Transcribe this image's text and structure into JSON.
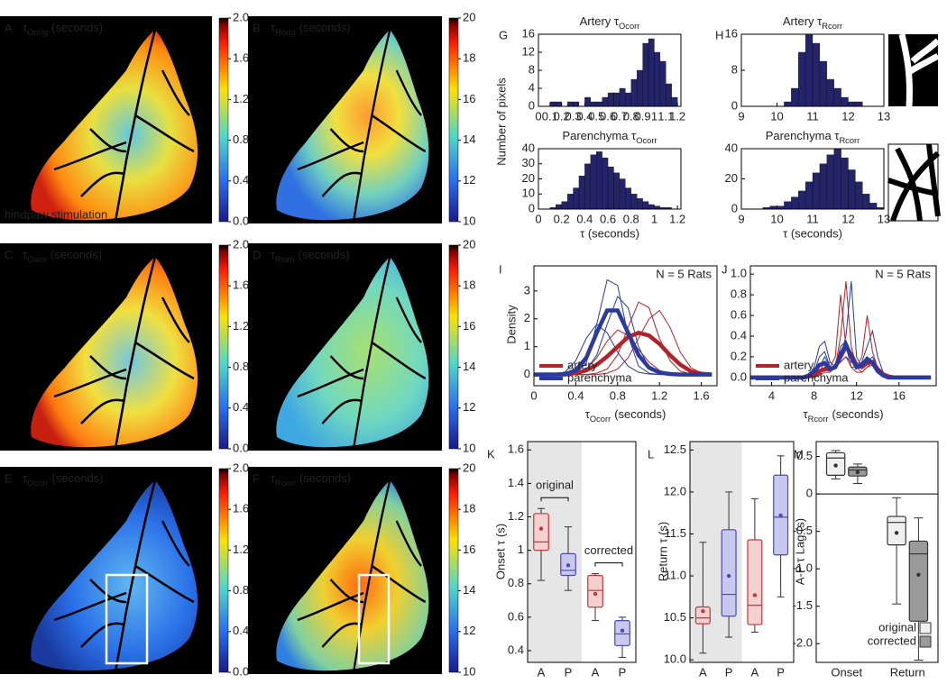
{
  "images": [
    {
      "letter": "A",
      "symbol": "τ",
      "subscript": "Oorig",
      "unit": "(seconds)",
      "note": "hindpaw stimulation",
      "colorbar": {
        "lim": [
          0,
          2
        ],
        "ticks": [
          {
            "value": 0,
            "label": "0.0"
          },
          0.4,
          0.8,
          1.2,
          1.6,
          {
            "value": 2,
            "label": "2.0"
          }
        ]
      }
    },
    {
      "letter": "B",
      "symbol": "τ",
      "subscript": "Rorig",
      "unit": "(seconds)",
      "colorbar": {
        "lim": [
          10,
          20
        ],
        "ticks": [
          10,
          12,
          14,
          16,
          18,
          20
        ]
      }
    },
    {
      "letter": "C",
      "symbol": "τ",
      "subscript": "Osim",
      "unit": "(seconds)",
      "colorbar": {
        "lim": [
          0,
          2
        ],
        "ticks": [
          {
            "value": 0,
            "label": "0.0"
          },
          0.4,
          0.8,
          1.2,
          1.6,
          {
            "value": 2,
            "label": "2.0"
          }
        ]
      }
    },
    {
      "letter": "D",
      "symbol": "τ",
      "subscript": "Rsim",
      "unit": "(seconds)",
      "colorbar": {
        "lim": [
          10,
          20
        ],
        "ticks": [
          10,
          12,
          14,
          16,
          18,
          20
        ]
      }
    },
    {
      "letter": "E",
      "symbol": "τ",
      "subscript": "Ocorr",
      "unit": "(seconds)",
      "colorbar": {
        "lim": [
          0,
          2
        ],
        "ticks": [
          {
            "value": 0,
            "label": "0.0"
          },
          0.4,
          0.8,
          1.2,
          1.6,
          {
            "value": 2,
            "label": "2.0"
          }
        ]
      }
    },
    {
      "letter": "F",
      "symbol": "τ",
      "subscript": "Rcorr",
      "unit": "(seconds)",
      "colorbar": {
        "lim": [
          10,
          20
        ],
        "ticks": [
          10,
          12,
          14,
          16,
          18,
          20
        ]
      }
    }
  ],
  "chart_data": [
    {
      "type": "histogram",
      "panel": "G",
      "title": "Artery τ",
      "title_subscript": "Ocorr",
      "ylabel": "Number of pixels",
      "color": "#24246a",
      "bins": [
        0,
        0.05,
        0.1,
        0.15,
        0.2,
        0.25,
        0.3,
        0.35,
        0.4,
        0.45,
        0.5,
        0.55,
        0.6,
        0.65,
        0.7,
        0.75,
        0.8,
        0.85,
        0.9,
        0.95,
        1,
        1.05,
        1.1,
        1.15,
        1.2
      ],
      "values": [
        0,
        0,
        1,
        1,
        0,
        1,
        1,
        0,
        2,
        1,
        1,
        2,
        3,
        3,
        4,
        3,
        6,
        8,
        14,
        15,
        12,
        10,
        5,
        2
      ],
      "xlim": [
        0,
        1.23
      ],
      "xticks": [
        0,
        0.1,
        0.2,
        0.3,
        0.4,
        0.5,
        0.6,
        0.7,
        0.8,
        0.9,
        1,
        1.1,
        1.2
      ],
      "ylim": [
        0,
        16
      ],
      "yticks": [
        0,
        4,
        8,
        12,
        16
      ]
    },
    {
      "type": "histogram",
      "title": "Parenchyma τ",
      "title_subscript": "Ocorr",
      "xlabel": "τ (seconds)",
      "color": "#24246a",
      "bins": [
        0,
        0.05,
        0.1,
        0.15,
        0.2,
        0.25,
        0.3,
        0.35,
        0.4,
        0.45,
        0.5,
        0.55,
        0.6,
        0.65,
        0.7,
        0.75,
        0.8,
        0.85,
        0.9,
        0.95,
        1,
        1.05,
        1.1,
        1.15,
        1.2
      ],
      "values": [
        0,
        0,
        1,
        3,
        5,
        10,
        14,
        22,
        30,
        36,
        38,
        34,
        28,
        24,
        20,
        14,
        10,
        7,
        5,
        3,
        2,
        1,
        1,
        0
      ],
      "xlim": [
        0,
        1.23
      ],
      "xticks": [
        0,
        0.2,
        0.4,
        0.6,
        0.8,
        1,
        1.2
      ],
      "ylim": [
        0,
        40
      ],
      "yticks": [
        0,
        10,
        20,
        30,
        40
      ]
    },
    {
      "type": "histogram",
      "panel": "H",
      "title": "Artery τ",
      "title_subscript": "Rcorr",
      "color": "#24246a",
      "bins": [
        9,
        9.2,
        9.4,
        9.6,
        9.8,
        10,
        10.2,
        10.4,
        10.6,
        10.8,
        11,
        11.2,
        11.4,
        11.6,
        11.8,
        12,
        12.2,
        12.4,
        12.6,
        12.8,
        13
      ],
      "values": [
        0,
        0,
        0,
        0,
        0,
        0,
        1,
        4,
        12,
        16,
        14,
        10,
        6,
        4,
        2,
        1,
        1,
        0,
        0,
        0
      ],
      "xlim": [
        9,
        13
      ],
      "xticks": [
        9,
        10,
        11,
        12,
        13
      ],
      "ylim": [
        0,
        16
      ],
      "yticks": [
        0,
        8,
        16
      ]
    },
    {
      "type": "histogram",
      "title": "Parenchyma τ",
      "title_subscript": "Rcorr",
      "xlabel": "τ (seconds)",
      "color": "#24246a",
      "bins": [
        9,
        9.2,
        9.4,
        9.6,
        9.8,
        10,
        10.2,
        10.4,
        10.6,
        10.8,
        11,
        11.2,
        11.4,
        11.6,
        11.8,
        12,
        12.2,
        12.4,
        12.6,
        12.8,
        13
      ],
      "values": [
        0,
        0,
        0,
        1,
        2,
        2,
        5,
        8,
        12,
        18,
        24,
        30,
        36,
        40,
        34,
        26,
        18,
        10,
        4,
        1
      ],
      "xlim": [
        9,
        13
      ],
      "xticks": [
        9,
        10,
        11,
        12,
        13
      ],
      "ylim": [
        0,
        40
      ],
      "yticks": [
        0,
        20,
        40
      ]
    },
    {
      "type": "line",
      "panel": "I",
      "annotation": "N = 5 Rats",
      "ylabel": "Density",
      "xlabel": "τ",
      "xlabel_subscript": "Ocorr",
      "xlabel_unit": "(seconds)",
      "x": [
        0,
        0.1,
        0.2,
        0.3,
        0.4,
        0.5,
        0.6,
        0.7,
        0.8,
        0.9,
        1,
        1.1,
        1.2,
        1.3,
        1.4,
        1.5,
        1.6,
        1.7
      ],
      "series": [
        {
          "name": "artery",
          "color": "#b22228",
          "values": [
            0,
            0,
            0,
            0,
            0.05,
            0.15,
            0.35,
            0.65,
            1.0,
            1.35,
            1.5,
            1.4,
            1.1,
            0.7,
            0.35,
            0.12,
            0.03,
            0
          ],
          "individual": [
            [
              0,
              0,
              0,
              0,
              0,
              0,
              0.05,
              0.2,
              0.7,
              1.7,
              2.6,
              2.4,
              1.3,
              0.5,
              0.12,
              0.02,
              0,
              0
            ],
            [
              0,
              0,
              0,
              0,
              0,
              0,
              0,
              0.05,
              0.2,
              0.6,
              1.3,
              2.0,
              2.3,
              1.7,
              0.8,
              0.25,
              0.05,
              0
            ],
            [
              0,
              0,
              0,
              0,
              0.05,
              0.2,
              0.6,
              1.2,
              1.6,
              1.4,
              0.9,
              0.45,
              0.15,
              0.04,
              0,
              0,
              0,
              0
            ]
          ]
        },
        {
          "name": "parenchyma",
          "color": "#2b3a9e",
          "values": [
            0,
            0,
            0,
            0.02,
            0.15,
            0.6,
            1.5,
            2.3,
            2.3,
            1.5,
            0.7,
            0.25,
            0.07,
            0.02,
            0,
            0,
            0,
            0
          ],
          "individual": [
            [
              0,
              0,
              0,
              0,
              0.05,
              0.4,
              1.8,
              3.4,
              3.2,
              1.4,
              0.3,
              0.05,
              0,
              0,
              0,
              0,
              0,
              0
            ],
            [
              0,
              0,
              0,
              0,
              0.02,
              0.15,
              0.7,
              1.8,
              2.8,
              2.4,
              1.0,
              0.25,
              0.04,
              0,
              0,
              0,
              0,
              0
            ],
            [
              0,
              0,
              0,
              0.1,
              0.5,
              1.3,
              1.8,
              1.5,
              0.8,
              0.3,
              0.08,
              0.02,
              0,
              0,
              0,
              0,
              0,
              0
            ]
          ]
        }
      ],
      "xlim": [
        0,
        1.75
      ],
      "xticks": [
        0,
        0.4,
        0.8,
        1.2,
        1.6
      ],
      "ylim": [
        -0.4,
        3.9
      ],
      "yticks": [
        0,
        1,
        2,
        3
      ]
    },
    {
      "type": "line",
      "panel": "J",
      "annotation": "N = 5 Rats",
      "xlabel": "τ",
      "xlabel_subscript": "Rcorr",
      "xlabel_unit": "(seconds)",
      "x": [
        2,
        7,
        7.5,
        8,
        8.5,
        9,
        9.5,
        10,
        10.5,
        11,
        11.5,
        12,
        12.5,
        13,
        13.5,
        14,
        14.5,
        15,
        15.5,
        19
      ],
      "series": [
        {
          "name": "artery",
          "color": "#b22228",
          "values": [
            0,
            0,
            0.01,
            0.03,
            0.06,
            0.08,
            0.08,
            0.1,
            0.2,
            0.3,
            0.22,
            0.12,
            0.1,
            0.14,
            0.15,
            0.08,
            0.03,
            0.01,
            0,
            0
          ],
          "individual": [
            [
              0,
              0,
              0,
              0,
              0.02,
              0.05,
              0.05,
              0.1,
              0.4,
              0.93,
              0.3,
              0.1,
              0.05,
              0.1,
              0.12,
              0.05,
              0.01,
              0,
              0,
              0
            ],
            [
              0,
              0,
              0,
              0.01,
              0.03,
              0.1,
              0.15,
              0.1,
              0.15,
              0.2,
              0.1,
              0.1,
              0.2,
              0.6,
              0.25,
              0.08,
              0.02,
              0,
              0,
              0
            ],
            [
              0,
              0,
              0,
              0,
              0.05,
              0.15,
              0.1,
              0.2,
              0.8,
              0.3,
              0.1,
              0.05,
              0.05,
              0.1,
              0.15,
              0.1,
              0.03,
              0,
              0,
              0
            ]
          ]
        },
        {
          "name": "parenchyma",
          "color": "#2b3a9e",
          "values": [
            0,
            0,
            0.02,
            0.06,
            0.12,
            0.14,
            0.08,
            0.1,
            0.22,
            0.32,
            0.2,
            0.1,
            0.12,
            0.18,
            0.14,
            0.06,
            0.02,
            0,
            0,
            0
          ],
          "individual": [
            [
              0,
              0,
              0,
              0.02,
              0.1,
              0.2,
              0.1,
              0.1,
              0.2,
              0.4,
              0.93,
              0.2,
              0.1,
              0.15,
              0.2,
              0.1,
              0.02,
              0,
              0,
              0
            ],
            [
              0,
              0,
              0,
              0.05,
              0.2,
              0.25,
              0.1,
              0.1,
              0.15,
              0.2,
              0.15,
              0.1,
              0.15,
              0.3,
              0.45,
              0.2,
              0.05,
              0,
              0,
              0
            ],
            [
              0,
              0,
              0.02,
              0.1,
              0.3,
              0.35,
              0.15,
              0.1,
              0.3,
              0.35,
              0.2,
              0.1,
              0.1,
              0.2,
              0.15,
              0.08,
              0.02,
              0,
              0,
              0
            ]
          ]
        }
      ],
      "xlim": [
        2,
        19.5
      ],
      "xticks": [
        4,
        8,
        12,
        16
      ],
      "ylim": [
        -0.08,
        1.08
      ],
      "yticks": [
        {
          "value": 0,
          "label": "0.0"
        },
        0.2,
        0.4,
        0.6,
        0.8,
        {
          "value": 1,
          "label": "1.0"
        }
      ]
    },
    {
      "type": "box",
      "panel": "K",
      "ylabel": "Onset τ (s)",
      "annotations": [
        "original",
        "corrected"
      ],
      "categories": [
        "A",
        "P",
        "A",
        "P"
      ],
      "boxes": [
        {
          "min": 0.82,
          "q1": 1.0,
          "median": 1.05,
          "q3": 1.22,
          "max": 1.25,
          "mean": 1.13,
          "color": "#c0393b",
          "fill": "#f6cfcf"
        },
        {
          "min": 0.76,
          "q1": 0.85,
          "median": 0.88,
          "q3": 0.98,
          "max": 1.14,
          "mean": 0.91,
          "color": "#4a4ab5",
          "fill": "#c9c9f0"
        },
        {
          "min": 0.58,
          "q1": 0.66,
          "median": 0.76,
          "q3": 0.85,
          "max": 0.86,
          "mean": 0.74,
          "color": "#c0393b",
          "fill": "#f6cfcf"
        },
        {
          "min": 0.36,
          "q1": 0.43,
          "median": 0.5,
          "q3": 0.58,
          "max": 0.6,
          "mean": 0.52,
          "color": "#4a4ab5",
          "fill": "#c9c9f0"
        }
      ],
      "ylim": [
        0.33,
        1.65
      ],
      "yticks": [
        0.4,
        0.6,
        0.8,
        1,
        1.2,
        1.4,
        1.6
      ]
    },
    {
      "type": "box",
      "panel": "L",
      "ylabel": "Return τ (s)",
      "categories": [
        "A",
        "P",
        "A",
        "P"
      ],
      "boxes": [
        {
          "min": 10.08,
          "q1": 10.43,
          "median": 10.5,
          "q3": 10.63,
          "max": 11.4,
          "mean": 10.58,
          "color": "#c0393b",
          "fill": "#f6cfcf"
        },
        {
          "min": 10.27,
          "q1": 10.52,
          "median": 10.78,
          "q3": 11.55,
          "max": 12.0,
          "mean": 11.0,
          "color": "#4a4ab5",
          "fill": "#c9c9f0"
        },
        {
          "min": 10.33,
          "q1": 10.42,
          "median": 10.65,
          "q3": 11.43,
          "max": 11.92,
          "mean": 10.77,
          "color": "#c0393b",
          "fill": "#f6cfcf"
        },
        {
          "min": 10.75,
          "q1": 11.25,
          "median": 11.7,
          "q3": 12.2,
          "max": 12.43,
          "mean": 11.72,
          "color": "#4a4ab5",
          "fill": "#c9c9f0"
        }
      ],
      "ylim": [
        9.97,
        12.6
      ],
      "yticks": [
        {
          "value": 10,
          "label": "10.0"
        },
        10.5,
        {
          "value": 11,
          "label": "11.0"
        },
        11.5,
        {
          "value": 12,
          "label": "12.0"
        },
        12.5
      ]
    },
    {
      "type": "grouped-box",
      "panel": "M",
      "ylabel": "A-P τ Lag (s)",
      "categories": [
        "Onset",
        "Return"
      ],
      "series": [
        {
          "name": "original",
          "color": "#f0f0f0",
          "boxes": [
            {
              "min": 0.2,
              "q1": 0.25,
              "median": 0.48,
              "q3": 0.55,
              "max": 0.58,
              "mean": 0.38
            },
            {
              "min": -1.47,
              "q1": -0.68,
              "median": -0.38,
              "q3": -0.3,
              "max": -0.05,
              "mean": -0.52
            }
          ]
        },
        {
          "name": "corrected",
          "color": "#9a9a9a",
          "boxes": [
            {
              "min": 0.14,
              "q1": 0.24,
              "median": 0.32,
              "q3": 0.36,
              "max": 0.4,
              "mean": 0.29
            },
            {
              "min": -2.22,
              "q1": -1.7,
              "median": -0.8,
              "q3": -0.63,
              "max": -0.32,
              "mean": -1.08
            }
          ]
        }
      ],
      "ylim": [
        -2.25,
        0.7
      ],
      "yticks": [
        0.5,
        0,
        -0.5,
        {
          "value": -1,
          "label": "-1.0"
        },
        -1.5,
        {
          "value": -2,
          "label": "-2.0"
        }
      ]
    }
  ]
}
